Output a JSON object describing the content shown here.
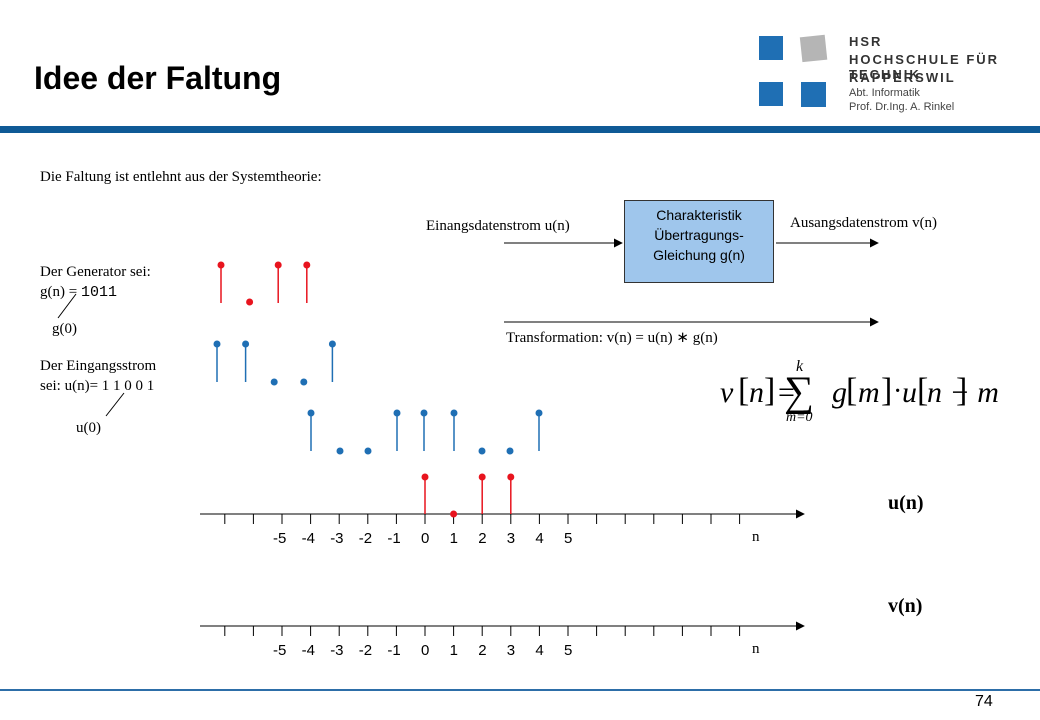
{
  "header": {
    "title": "Idee der Faltung",
    "logo": {
      "line1": "HSR",
      "line2": "HOCHSCHULE FÜR TECHNIK",
      "line3": "RAPPERSWIL",
      "line4": "Abt. Informatik",
      "line5": "Prof. Dr.Ing. A. Rinkel"
    }
  },
  "intro": "Die Faltung ist entlehnt aus der Systemtheorie:",
  "system": {
    "input_label": "Einangsdatenstrom u(n)",
    "output_label": "Ausangsdatenstrom v(n)",
    "box_line1": "Charakteristik",
    "box_line2": "Übertragungs-",
    "box_line3": "Gleichung g(n)",
    "transformation_prefix": "Transformation: v(n) = u(n) ",
    "transformation_op": "∗",
    "transformation_suffix": " g(n)"
  },
  "generator": {
    "line1": "Der Generator sei:",
    "line2_prefix": "g(n) = ",
    "line2_value": "1011",
    "origin": "g(0)"
  },
  "input": {
    "line1": "Der Eingangsstrom",
    "line2": "sei: u(n)= 1 1 0 0 1",
    "origin": "u(0)"
  },
  "formula": {
    "v": "v",
    "n": "n",
    "eq": "=",
    "sum": "∑",
    "upper": "k",
    "lower": "m=0",
    "g": "g",
    "m": "m",
    "dot": "·",
    "u": "u",
    "n_minus_m": "n − m"
  },
  "axes": [
    {
      "name": "u(n)",
      "var": "n",
      "ticks": [
        "-5",
        "-4",
        "-3",
        "-2",
        "-1",
        "0",
        "1",
        "2",
        "3",
        "4",
        "5"
      ]
    },
    {
      "name": "v(n)",
      "var": "n",
      "ticks": [
        "-5",
        "-4",
        "-3",
        "-2",
        "-1",
        "0",
        "1",
        "2",
        "3",
        "4",
        "5"
      ]
    }
  ],
  "colors": {
    "red": "#e8141e",
    "blue": "#1f6fb4",
    "accent_bar": "#0f5a96",
    "box_fill": "#9fc6ec"
  },
  "page_number": "74"
}
